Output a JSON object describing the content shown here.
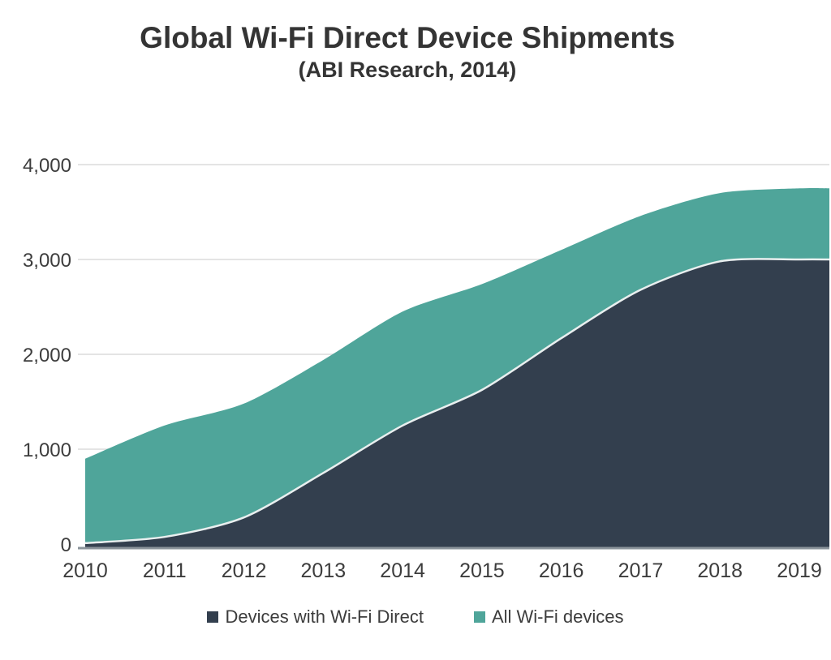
{
  "page": {
    "title": "Global Wi-Fi Direct Device Shipments",
    "subtitle": "(ABI Research, 2014)"
  },
  "legend": {
    "items": [
      {
        "label": "Devices with Wi-Fi Direct",
        "color": "#333F4E"
      },
      {
        "label": "All Wi-Fi devices",
        "color": "#4FA59A"
      }
    ]
  },
  "chart_data": {
    "type": "area",
    "title": "Global Wi-Fi Direct Device Shipments",
    "subtitle": "(ABI Research, 2014)",
    "x": [
      2010,
      2011,
      2012,
      2013,
      2014,
      2015,
      2016,
      2017,
      2018,
      2019
    ],
    "x_labels": [
      "2010",
      "2011",
      "2012",
      "2013",
      "2014",
      "2015",
      "2016",
      "2017",
      "2018",
      "2019"
    ],
    "series": [
      {
        "name": "All Wi-Fi devices",
        "color": "#4FA59A",
        "values": [
          900,
          1250,
          1480,
          1940,
          2450,
          2740,
          3100,
          3460,
          3700,
          3750
        ]
      },
      {
        "name": "Devices with Wi-Fi Direct",
        "color": "#333F4E",
        "values": [
          10,
          75,
          280,
          750,
          1250,
          1625,
          2170,
          2680,
          2980,
          3000
        ]
      }
    ],
    "overlay": true,
    "ylim": [
      0,
      4000
    ],
    "yticks": [
      0,
      1000,
      2000,
      3000,
      4000
    ],
    "ytick_labels": [
      "0",
      "1,000",
      "2,000",
      "3,000",
      "4,000"
    ],
    "grid": true,
    "legend_position": "bottom"
  },
  "style": {
    "grid_color": "#E4E4E4",
    "axis_color": "#8A939A",
    "boundary_color": "#E9EFEF",
    "tick_text_color": "#3D3D3D"
  }
}
